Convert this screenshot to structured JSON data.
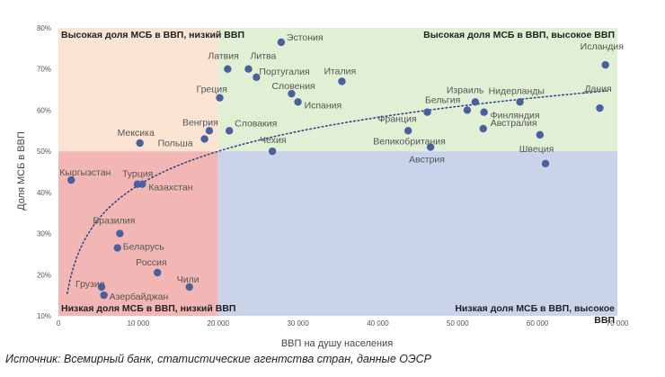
{
  "chart_data": {
    "type": "scatter",
    "title": "",
    "xlabel": "ВВП на душу населения",
    "ylabel": "Доля МСБ в ВВП",
    "xlim": [
      0,
      70000
    ],
    "ylim": [
      10,
      80
    ],
    "x_ticks": [
      0,
      10000,
      20000,
      30000,
      40000,
      50000,
      60000,
      70000
    ],
    "x_tick_labels": [
      "0",
      "10 000",
      "20 000",
      "30 000",
      "40 000",
      "50 000",
      "60 000",
      "70 000"
    ],
    "y_ticks": [
      10,
      20,
      30,
      40,
      50,
      60,
      70,
      80
    ],
    "y_tick_labels": [
      "10%",
      "20%",
      "30%",
      "40%",
      "50%",
      "60%",
      "70%",
      "80%"
    ],
    "grid": false,
    "trendline": "logarithmic",
    "quadrant_thresholds": {
      "x": 20000,
      "y": 50
    },
    "quadrants": [
      {
        "key": "top_left",
        "label": "Высокая доля МСБ в ВВП, низкий ВВП",
        "color": "#fbe4d2"
      },
      {
        "key": "top_right",
        "label": "Высокая доля МСБ в ВВП, высокое ВВП",
        "color": "#e1efd4"
      },
      {
        "key": "bottom_left",
        "label": "Низкая доля МСБ в ВВП, низкий ВВП",
        "color": "#f2b7b5"
      },
      {
        "key": "bottom_right",
        "label": "Низкая доля МСБ в ВВП, высокое ВВП",
        "color": "#c9d3ea"
      }
    ],
    "point_color": "#4a5f9e",
    "points": [
      {
        "label": "Эстония",
        "x": 27900,
        "y": 76.5
      },
      {
        "label": "Латвия",
        "x": 21200,
        "y": 70
      },
      {
        "label": "Литва",
        "x": 23800,
        "y": 70
      },
      {
        "label": "Португалия",
        "x": 24800,
        "y": 68
      },
      {
        "label": "Италия",
        "x": 35500,
        "y": 67
      },
      {
        "label": "Исландия",
        "x": 68500,
        "y": 71
      },
      {
        "label": "Греция",
        "x": 20200,
        "y": 63
      },
      {
        "label": "Словения",
        "x": 29200,
        "y": 64
      },
      {
        "label": "Испания",
        "x": 30000,
        "y": 62
      },
      {
        "label": "Израиль",
        "x": 52200,
        "y": 62
      },
      {
        "label": "Нидерланды",
        "x": 57800,
        "y": 62
      },
      {
        "label": "Дания",
        "x": 67800,
        "y": 60.5
      },
      {
        "label": "Бельгия",
        "x": 51200,
        "y": 60
      },
      {
        "label": "Финляндия",
        "x": 53300,
        "y": 59.5
      },
      {
        "label": "Франция",
        "x": 46200,
        "y": 59.5
      },
      {
        "label": "Венгрия",
        "x": 18900,
        "y": 55
      },
      {
        "label": "Словакия",
        "x": 21400,
        "y": 55
      },
      {
        "label": "Мексика",
        "x": 10200,
        "y": 52
      },
      {
        "label": "Польша",
        "x": 18300,
        "y": 53
      },
      {
        "label": "Чехия",
        "x": 26800,
        "y": 50
      },
      {
        "label": "Великобритания",
        "x": 43800,
        "y": 55
      },
      {
        "label": "Австрия",
        "x": 46600,
        "y": 51
      },
      {
        "label": "Австралия",
        "x": 53200,
        "y": 55.5
      },
      {
        "label": "Швеция",
        "x": 60300,
        "y": 54
      },
      {
        "label": "Швеция",
        "x": 61000,
        "y": 47
      },
      {
        "label": "Кыргызстан",
        "x": 1600,
        "y": 43
      },
      {
        "label": "Турция",
        "x": 9900,
        "y": 42
      },
      {
        "label": "Казахстан",
        "x": 10500,
        "y": 42
      },
      {
        "label": "Брaзилия",
        "x": 7700,
        "y": 30
      },
      {
        "label": "Беларусь",
        "x": 7400,
        "y": 26.5
      },
      {
        "label": "Россия",
        "x": 12400,
        "y": 20.5
      },
      {
        "label": "Чили",
        "x": 16400,
        "y": 17
      },
      {
        "label": "Грузия",
        "x": 5400,
        "y": 17
      },
      {
        "label": "Азербайджан",
        "x": 5700,
        "y": 15
      }
    ]
  },
  "source_note": "Источник: Всемирный банк, статистические агентства стран, данные ОЭСР"
}
